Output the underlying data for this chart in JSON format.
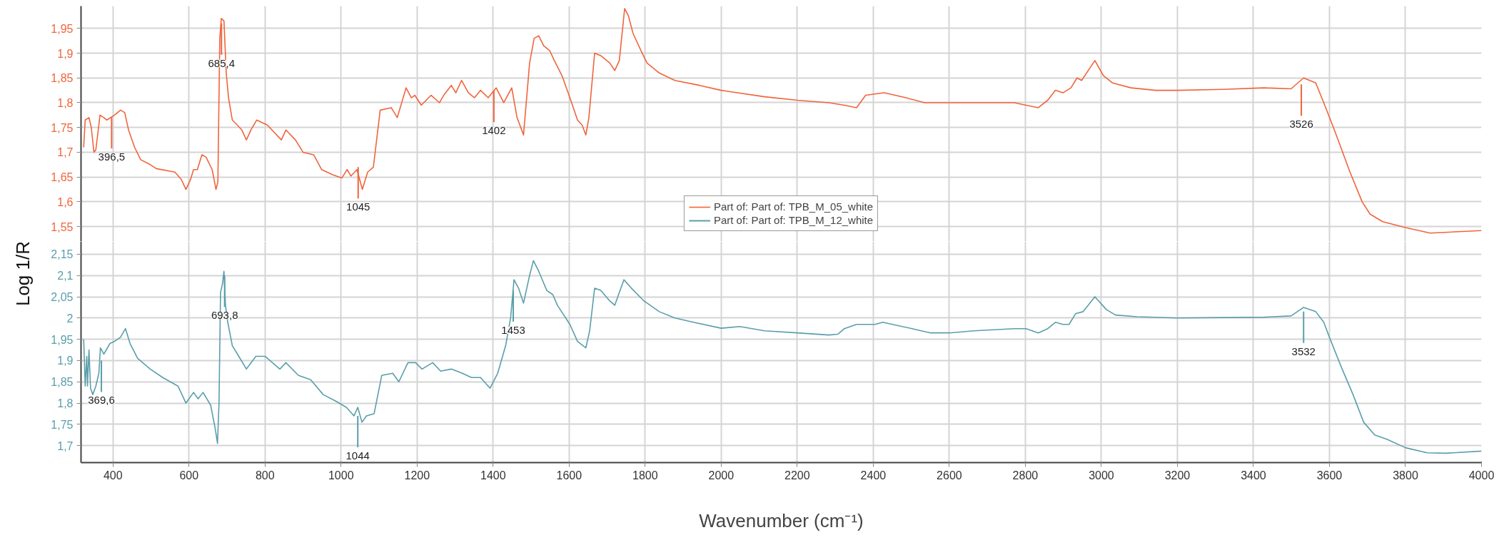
{
  "chart_data": [
    {
      "type": "line",
      "ylabel": "Log 1/R",
      "xlim": [
        316,
        4000
      ],
      "xticks": [
        400,
        600,
        800,
        1000,
        1200,
        1400,
        1600,
        1800,
        2000,
        2200,
        2400,
        2600,
        2800,
        3000,
        3200,
        3400,
        3600,
        3800,
        4000
      ],
      "ylim": [
        1.52,
        1.995
      ],
      "yticks": [
        {
          "value": 1.55,
          "label": "1,55"
        },
        {
          "value": 1.6,
          "label": "1,6"
        },
        {
          "value": 1.65,
          "label": "1,65"
        },
        {
          "value": 1.7,
          "label": "1,7"
        },
        {
          "value": 1.75,
          "label": "1,75"
        },
        {
          "value": 1.8,
          "label": "1,8"
        },
        {
          "value": 1.85,
          "label": "1,85"
        },
        {
          "value": 1.9,
          "label": "1,9"
        },
        {
          "value": 1.95,
          "label": "1,95"
        }
      ],
      "tick_labels": "y",
      "grid": true,
      "legend": "bottom",
      "marker": "none",
      "series": [
        {
          "name": "Part of: Part of: TPB_M_05_white",
          "color": "#f0643c",
          "x": [
            323,
            327,
            337,
            343,
            350,
            355,
            366,
            376,
            384,
            404,
            420,
            431,
            441,
            457,
            473,
            498,
            514,
            563,
            580,
            592,
            604,
            612,
            622,
            634,
            645,
            661,
            671,
            676,
            681,
            685,
            692,
            698,
            704,
            714,
            727,
            739,
            751,
            763,
            778,
            806,
            843,
            855,
            880,
            900,
            928,
            949,
            977,
            1002,
            1016,
            1026,
            1042,
            1056,
            1070,
            1085,
            1103,
            1132,
            1148,
            1171,
            1185,
            1194,
            1211,
            1237,
            1259,
            1270,
            1290,
            1302,
            1317,
            1335,
            1351,
            1367,
            1387,
            1408,
            1428,
            1449,
            1463,
            1480,
            1496,
            1508,
            1520,
            1533,
            1549,
            1561,
            1581,
            1602,
            1622,
            1634,
            1644,
            1652,
            1667,
            1683,
            1707,
            1720,
            1732,
            1746,
            1756,
            1768,
            1789,
            1805,
            1837,
            1878,
            1943,
            2000,
            2114,
            2200,
            2283,
            2324,
            2356,
            2380,
            2429,
            2486,
            2535,
            2584,
            2665,
            2771,
            2802,
            2834,
            2859,
            2879,
            2899,
            2920,
            2936,
            2948,
            2983,
            3005,
            3029,
            3078,
            3143,
            3200,
            3322,
            3428,
            3499,
            3532,
            3564,
            3585,
            3613,
            3654,
            3686,
            3707,
            3740,
            3800,
            3865,
            4000
          ],
          "values": [
            1.71,
            1.765,
            1.77,
            1.75,
            1.7,
            1.705,
            1.775,
            1.77,
            1.765,
            1.775,
            1.785,
            1.78,
            1.745,
            1.71,
            1.685,
            1.675,
            1.667,
            1.66,
            1.645,
            1.625,
            1.645,
            1.665,
            1.665,
            1.695,
            1.69,
            1.665,
            1.625,
            1.64,
            1.93,
            1.97,
            1.965,
            1.86,
            1.81,
            1.765,
            1.755,
            1.745,
            1.725,
            1.745,
            1.765,
            1.755,
            1.725,
            1.745,
            1.725,
            1.7,
            1.695,
            1.665,
            1.655,
            1.648,
            1.665,
            1.652,
            1.665,
            1.625,
            1.66,
            1.67,
            1.785,
            1.79,
            1.77,
            1.83,
            1.81,
            1.815,
            1.795,
            1.815,
            1.8,
            1.815,
            1.835,
            1.82,
            1.845,
            1.82,
            1.81,
            1.825,
            1.81,
            1.83,
            1.8,
            1.83,
            1.77,
            1.735,
            1.88,
            1.93,
            1.935,
            1.915,
            1.905,
            1.885,
            1.855,
            1.81,
            1.765,
            1.755,
            1.735,
            1.77,
            1.9,
            1.895,
            1.88,
            1.865,
            1.885,
            1.99,
            1.975,
            1.94,
            1.905,
            1.88,
            1.86,
            1.845,
            1.835,
            1.825,
            1.812,
            1.805,
            1.8,
            1.795,
            1.79,
            1.815,
            1.82,
            1.81,
            1.8,
            1.8,
            1.8,
            1.8,
            1.795,
            1.79,
            1.805,
            1.825,
            1.82,
            1.83,
            1.85,
            1.845,
            1.885,
            1.855,
            1.84,
            1.83,
            1.825,
            1.825,
            1.827,
            1.83,
            1.828,
            1.85,
            1.84,
            1.8,
            1.745,
            1.66,
            1.6,
            1.575,
            1.56,
            1.548,
            1.537,
            1.542
          ]
        }
      ],
      "annotations": [
        {
          "text": "396,5",
          "x": 396.5,
          "y": 1.771
        },
        {
          "text": "685,4",
          "x": 685.4,
          "y": 1.96
        },
        {
          "text": "1045",
          "x": 1045,
          "y": 1.67
        },
        {
          "text": "1402",
          "x": 1402,
          "y": 1.824
        },
        {
          "text": "3526",
          "x": 3526,
          "y": 1.837
        }
      ]
    },
    {
      "type": "line",
      "xlabel": "Wavenumber (cm⁻¹)",
      "xlim": [
        316,
        4000
      ],
      "xticks": [
        400,
        600,
        800,
        1000,
        1200,
        1400,
        1600,
        1800,
        2000,
        2200,
        2400,
        2600,
        2800,
        3000,
        3200,
        3400,
        3600,
        3800,
        4000
      ],
      "ylim": [
        1.66,
        2.18
      ],
      "yticks": [
        {
          "value": 1.7,
          "label": "1,7"
        },
        {
          "value": 1.75,
          "label": "1,75"
        },
        {
          "value": 1.8,
          "label": "1,8"
        },
        {
          "value": 1.85,
          "label": "1,85"
        },
        {
          "value": 1.9,
          "label": "1,9"
        },
        {
          "value": 1.95,
          "label": "1,95"
        },
        2,
        {
          "value": 2.05,
          "label": "2,05"
        },
        {
          "value": 2.1,
          "label": "2,1"
        },
        {
          "value": 2.15,
          "label": "2,15"
        }
      ],
      "grid": true,
      "marker": "none",
      "series": [
        {
          "name": "Part of: Part of: TPB_M_12_white",
          "color": "#5a9eaa",
          "x": [
            323,
            327,
            331,
            333,
            337,
            341,
            347,
            355,
            363,
            367,
            376,
            392,
            404,
            420,
            433,
            445,
            465,
            498,
            531,
            571,
            592,
            612,
            624,
            637,
            657,
            669,
            675,
            679,
            683,
            688,
            692,
            696,
            702,
            714,
            731,
            751,
            776,
            800,
            839,
            855,
            888,
            920,
            953,
            985,
            1014,
            1034,
            1044,
            1055,
            1067,
            1087,
            1107,
            1136,
            1152,
            1176,
            1196,
            1213,
            1241,
            1262,
            1290,
            1319,
            1343,
            1367,
            1392,
            1412,
            1433,
            1446,
            1455,
            1467,
            1480,
            1496,
            1506,
            1520,
            1541,
            1557,
            1569,
            1602,
            1622,
            1644,
            1654,
            1667,
            1683,
            1707,
            1720,
            1744,
            1764,
            1797,
            1837,
            1878,
            1927,
            2000,
            2049,
            2114,
            2200,
            2283,
            2307,
            2324,
            2356,
            2405,
            2425,
            2502,
            2551,
            2600,
            2665,
            2771,
            2802,
            2834,
            2859,
            2879,
            2899,
            2915,
            2932,
            2952,
            2983,
            3013,
            3037,
            3094,
            3200,
            3428,
            3499,
            3532,
            3564,
            3585,
            3602,
            3631,
            3662,
            3690,
            3719,
            3751,
            3800,
            3857,
            3906,
            4000
          ],
          "values": [
            1.95,
            1.84,
            1.91,
            1.84,
            1.925,
            1.835,
            1.82,
            1.84,
            1.87,
            1.93,
            1.915,
            1.94,
            1.945,
            1.955,
            1.975,
            1.94,
            1.905,
            1.88,
            1.86,
            1.84,
            1.8,
            1.825,
            1.81,
            1.825,
            1.795,
            1.74,
            1.705,
            1.8,
            2.06,
            2.08,
            2.11,
            2.03,
            1.99,
            1.935,
            1.91,
            1.88,
            1.91,
            1.91,
            1.88,
            1.895,
            1.865,
            1.855,
            1.82,
            1.805,
            1.79,
            1.77,
            1.79,
            1.755,
            1.77,
            1.775,
            1.865,
            1.87,
            1.85,
            1.895,
            1.895,
            1.88,
            1.895,
            1.875,
            1.88,
            1.87,
            1.86,
            1.86,
            1.835,
            1.87,
            1.935,
            2.0,
            2.09,
            2.07,
            2.035,
            2.1,
            2.135,
            2.11,
            2.065,
            2.055,
            2.03,
            1.985,
            1.945,
            1.93,
            1.97,
            2.07,
            2.065,
            2.04,
            2.03,
            2.09,
            2.07,
            2.04,
            2.015,
            2.0,
            1.99,
            1.976,
            1.98,
            1.97,
            1.965,
            1.96,
            1.962,
            1.975,
            1.985,
            1.985,
            1.99,
            1.975,
            1.965,
            1.965,
            1.97,
            1.975,
            1.975,
            1.965,
            1.975,
            1.99,
            1.985,
            1.985,
            2.01,
            2.015,
            2.05,
            2.02,
            2.007,
            2.003,
            2.0,
            2.002,
            2.005,
            2.025,
            2.015,
            1.99,
            1.95,
            1.885,
            1.82,
            1.755,
            1.725,
            1.715,
            1.695,
            1.683,
            1.682,
            1.687
          ]
        }
      ],
      "annotations": [
        {
          "text": "369,6",
          "x": 369.6,
          "y": 1.9
        },
        {
          "text": "693,8",
          "x": 693.8,
          "y": 2.1
        },
        {
          "text": "1044",
          "x": 1044,
          "y": 1.77
        },
        {
          "text": "1453",
          "x": 1453,
          "y": 2.065
        },
        {
          "text": "3532",
          "x": 3532,
          "y": 2.015
        }
      ]
    }
  ]
}
